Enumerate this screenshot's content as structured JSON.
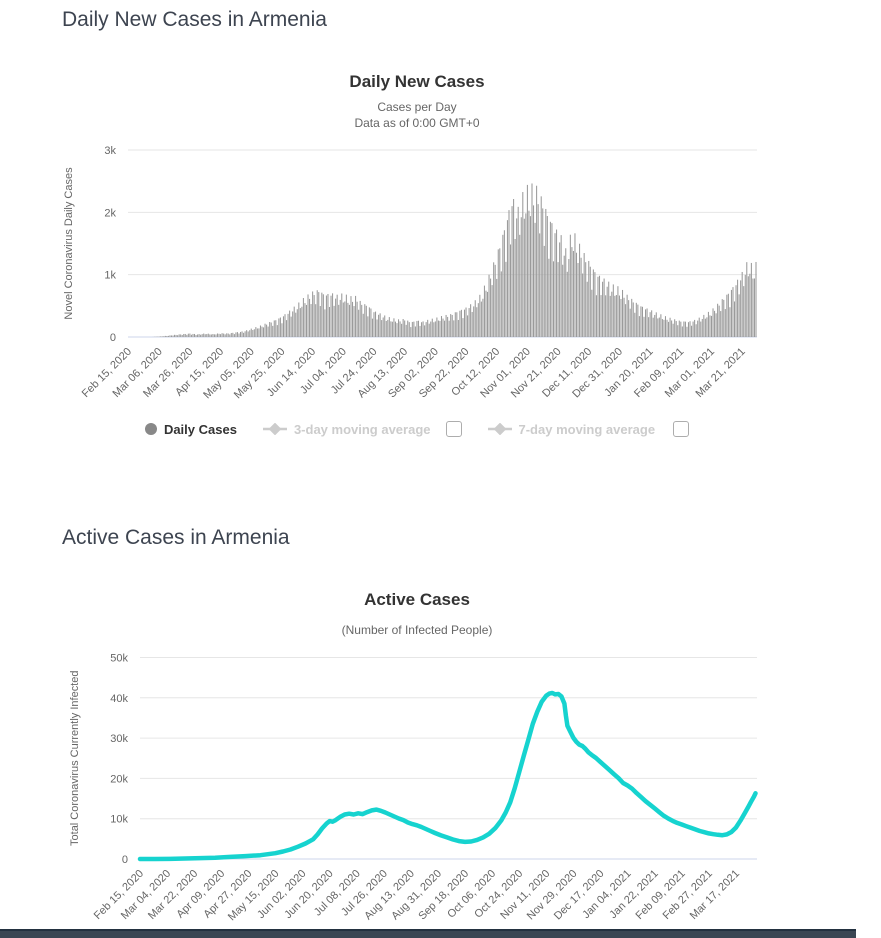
{
  "page": {
    "daily_section_heading": "Daily New Cases in Armenia",
    "active_section_heading": "Active Cases in Armenia",
    "footer_bar_color": "#3a4653"
  },
  "chart_data": [
    {
      "type": "bar",
      "title": "Daily New Cases",
      "subtitle_lines": [
        "Cases per Day",
        "Data as of 0:00 GMT+0"
      ],
      "ylabel": "Novel Coronavirus Daily Cases",
      "ylim": [
        0,
        3000
      ],
      "grid": true,
      "grid_color": "#e6e6e6",
      "axis_line_color": "#ccd6eb",
      "label_color": "#666666",
      "yticks": [
        {
          "value": 0,
          "label": "0"
        },
        {
          "value": 1000,
          "label": "1k"
        },
        {
          "value": 2000,
          "label": "2k"
        },
        {
          "value": 3000,
          "label": "3k"
        }
      ],
      "x_unit": "days since Feb 15, 2020",
      "xticks": [
        {
          "day": 0,
          "label": "Feb 15, 2020"
        },
        {
          "day": 20,
          "label": "Mar 06, 2020"
        },
        {
          "day": 40,
          "label": "Mar 26, 2020"
        },
        {
          "day": 60,
          "label": "Apr 15, 2020"
        },
        {
          "day": 80,
          "label": "May 05, 2020"
        },
        {
          "day": 100,
          "label": "May 25, 2020"
        },
        {
          "day": 120,
          "label": "Jun 14, 2020"
        },
        {
          "day": 140,
          "label": "Jul 04, 2020"
        },
        {
          "day": 160,
          "label": "Jul 24, 2020"
        },
        {
          "day": 180,
          "label": "Aug 13, 2020"
        },
        {
          "day": 200,
          "label": "Sep 02, 2020"
        },
        {
          "day": 220,
          "label": "Sep 22, 2020"
        },
        {
          "day": 240,
          "label": "Oct 12, 2020"
        },
        {
          "day": 260,
          "label": "Nov 01, 2020"
        },
        {
          "day": 280,
          "label": "Nov 21, 2020"
        },
        {
          "day": 300,
          "label": "Dec 11, 2020"
        },
        {
          "day": 320,
          "label": "Dec 31, 2020"
        },
        {
          "day": 340,
          "label": "Jan 20, 2021"
        },
        {
          "day": 360,
          "label": "Feb 09, 2021"
        },
        {
          "day": 380,
          "label": "Mar 01, 2021"
        },
        {
          "day": 400,
          "label": "Mar 21, 2021"
        }
      ],
      "series": [
        {
          "name": "Daily Cases",
          "color": "#9a9a9a",
          "envelope_points": [
            [
              0,
              0
            ],
            [
              14,
              0
            ],
            [
              16,
              2
            ],
            [
              20,
              8
            ],
            [
              25,
              20
            ],
            [
              30,
              35
            ],
            [
              35,
              48
            ],
            [
              40,
              58
            ],
            [
              45,
              45
            ],
            [
              50,
              58
            ],
            [
              55,
              48
            ],
            [
              60,
              62
            ],
            [
              65,
              60
            ],
            [
              70,
              78
            ],
            [
              75,
              95
            ],
            [
              80,
              135
            ],
            [
              85,
              175
            ],
            [
              90,
              225
            ],
            [
              95,
              275
            ],
            [
              100,
              340
            ],
            [
              105,
              430
            ],
            [
              110,
              530
            ],
            [
              115,
              650
            ],
            [
              120,
              740
            ],
            [
              124,
              780
            ],
            [
              128,
              705
            ],
            [
              132,
              725
            ],
            [
              136,
              685
            ],
            [
              140,
              705
            ],
            [
              144,
              655
            ],
            [
              148,
              665
            ],
            [
              152,
              565
            ],
            [
              156,
              525
            ],
            [
              160,
              430
            ],
            [
              164,
              385
            ],
            [
              168,
              335
            ],
            [
              172,
              305
            ],
            [
              176,
              285
            ],
            [
              180,
              295
            ],
            [
              184,
              245
            ],
            [
              188,
              275
            ],
            [
              192,
              255
            ],
            [
              196,
              285
            ],
            [
              200,
              305
            ],
            [
              205,
              345
            ],
            [
              210,
              375
            ],
            [
              215,
              435
            ],
            [
              220,
              485
            ],
            [
              225,
              565
            ],
            [
              230,
              705
            ],
            [
              235,
              1005
            ],
            [
              240,
              1355
            ],
            [
              245,
              1805
            ],
            [
              250,
              2305
            ],
            [
              254,
              2105
            ],
            [
              258,
              2405
            ],
            [
              262,
              2476
            ],
            [
              266,
              2450
            ],
            [
              270,
              2255
            ],
            [
              274,
              2005
            ],
            [
              278,
              1805
            ],
            [
              282,
              1655
            ],
            [
              286,
              1355
            ],
            [
              289,
              1785
            ],
            [
              292,
              1605
            ],
            [
              296,
              1405
            ],
            [
              300,
              1255
            ],
            [
              305,
              1055
            ],
            [
              310,
              955
            ],
            [
              315,
              855
            ],
            [
              320,
              805
            ],
            [
              325,
              685
            ],
            [
              330,
              585
            ],
            [
              335,
              505
            ],
            [
              340,
              445
            ],
            [
              345,
              385
            ],
            [
              350,
              335
            ],
            [
              355,
              295
            ],
            [
              360,
              265
            ],
            [
              365,
              255
            ],
            [
              370,
              285
            ],
            [
              375,
              355
            ],
            [
              380,
              435
            ],
            [
              385,
              565
            ],
            [
              390,
              705
            ],
            [
              395,
              865
            ],
            [
              400,
              1055
            ],
            [
              404,
              1255
            ],
            [
              407,
              1155
            ],
            [
              409,
              1205
            ]
          ]
        }
      ],
      "legend": {
        "items": [
          {
            "label": "Daily Cases",
            "enabled": true,
            "marker": "circle",
            "color": "#888888",
            "checkbox": false
          },
          {
            "label": "3-day moving average",
            "enabled": false,
            "marker": "line-diamond",
            "color": "#cccccc",
            "checkbox": true
          },
          {
            "label": "7-day moving average",
            "enabled": false,
            "marker": "line-diamond",
            "color": "#cccccc",
            "checkbox": true
          }
        ]
      }
    },
    {
      "type": "line",
      "title": "Active Cases",
      "subtitle_lines": [
        "(Number of Infected People)"
      ],
      "ylabel": "Total Coronavirus Currently Infected",
      "ylim": [
        0,
        50000
      ],
      "grid": true,
      "grid_color": "#e6e6e6",
      "axis_line_color": "#ccd6eb",
      "label_color": "#666666",
      "yticks": [
        {
          "value": 0,
          "label": "0"
        },
        {
          "value": 10000,
          "label": "10k"
        },
        {
          "value": 20000,
          "label": "20k"
        },
        {
          "value": 30000,
          "label": "30k"
        },
        {
          "value": 40000,
          "label": "40k"
        },
        {
          "value": 50000,
          "label": "50k"
        }
      ],
      "x_unit": "days since Feb 15, 2020",
      "xticks": [
        {
          "day": 0,
          "label": "Feb 15, 2020"
        },
        {
          "day": 18,
          "label": "Mar 04, 2020"
        },
        {
          "day": 36,
          "label": "Mar 22, 2020"
        },
        {
          "day": 54,
          "label": "Apr 09, 2020"
        },
        {
          "day": 72,
          "label": "Apr 27, 2020"
        },
        {
          "day": 90,
          "label": "May 15, 2020"
        },
        {
          "day": 108,
          "label": "Jun 02, 2020"
        },
        {
          "day": 126,
          "label": "Jun 20, 2020"
        },
        {
          "day": 144,
          "label": "Jul 08, 2020"
        },
        {
          "day": 162,
          "label": "Jul 26, 2020"
        },
        {
          "day": 180,
          "label": "Aug 13, 2020"
        },
        {
          "day": 198,
          "label": "Aug 31, 2020"
        },
        {
          "day": 216,
          "label": "Sep 18, 2020"
        },
        {
          "day": 234,
          "label": "Oct 06, 2020"
        },
        {
          "day": 252,
          "label": "Oct 24, 2020"
        },
        {
          "day": 270,
          "label": "Nov 11, 2020"
        },
        {
          "day": 288,
          "label": "Nov 29, 2020"
        },
        {
          "day": 306,
          "label": "Dec 17, 2020"
        },
        {
          "day": 324,
          "label": "Jan 04, 2021"
        },
        {
          "day": 342,
          "label": "Jan 22, 2021"
        },
        {
          "day": 360,
          "label": "Feb 09, 2021"
        },
        {
          "day": 378,
          "label": "Feb 27, 2021"
        },
        {
          "day": 396,
          "label": "Mar 17, 2021"
        }
      ],
      "series": [
        {
          "name": "Active Cases",
          "color": "#16d3cf",
          "points": [
            [
              0,
              0
            ],
            [
              10,
              0
            ],
            [
              20,
              30
            ],
            [
              30,
              120
            ],
            [
              40,
              220
            ],
            [
              50,
              330
            ],
            [
              60,
              520
            ],
            [
              70,
              720
            ],
            [
              80,
              950
            ],
            [
              90,
              1450
            ],
            [
              95,
              1850
            ],
            [
              100,
              2350
            ],
            [
              105,
              3050
            ],
            [
              110,
              3850
            ],
            [
              115,
              4900
            ],
            [
              118,
              6100
            ],
            [
              121,
              7600
            ],
            [
              124,
              8800
            ],
            [
              126,
              9400
            ],
            [
              128,
              9250
            ],
            [
              130,
              9650
            ],
            [
              133,
              10450
            ],
            [
              136,
              11050
            ],
            [
              139,
              11250
            ],
            [
              142,
              11050
            ],
            [
              145,
              11350
            ],
            [
              148,
              11150
            ],
            [
              151,
              11650
            ],
            [
              154,
              12050
            ],
            [
              157,
              12250
            ],
            [
              160,
              11950
            ],
            [
              163,
              11550
            ],
            [
              166,
              11050
            ],
            [
              169,
              10550
            ],
            [
              172,
              10050
            ],
            [
              175,
              9650
            ],
            [
              178,
              9050
            ],
            [
              181,
              8650
            ],
            [
              184,
              8350
            ],
            [
              187,
              7950
            ],
            [
              190,
              7450
            ],
            [
              193,
              6950
            ],
            [
              196,
              6450
            ],
            [
              200,
              5850
            ],
            [
              204,
              5350
            ],
            [
              208,
              4850
            ],
            [
              212,
              4450
            ],
            [
              216,
              4250
            ],
            [
              220,
              4350
            ],
            [
              224,
              4750
            ],
            [
              228,
              5350
            ],
            [
              232,
              6250
            ],
            [
              236,
              7650
            ],
            [
              240,
              9550
            ],
            [
              243,
              11550
            ],
            [
              246,
              14050
            ],
            [
              249,
              17550
            ],
            [
              252,
              21550
            ],
            [
              255,
              25550
            ],
            [
              258,
              29550
            ],
            [
              261,
              33550
            ],
            [
              264,
              36550
            ],
            [
              267,
              39050
            ],
            [
              270,
              40550
            ],
            [
              272,
              41050
            ],
            [
              274,
              41200
            ],
            [
              276,
              40850
            ],
            [
              278,
              40950
            ],
            [
              280,
              40350
            ],
            [
              282,
              38550
            ],
            [
              283,
              35550
            ],
            [
              284,
              33050
            ],
            [
              286,
              31550
            ],
            [
              288,
              30050
            ],
            [
              290,
              29050
            ],
            [
              292,
              28350
            ],
            [
              294,
              28050
            ],
            [
              296,
              27350
            ],
            [
              298,
              26450
            ],
            [
              300,
              25850
            ],
            [
              303,
              25050
            ],
            [
              306,
              24050
            ],
            [
              309,
              23050
            ],
            [
              312,
              22050
            ],
            [
              315,
              21050
            ],
            [
              318,
              20050
            ],
            [
              321,
              18850
            ],
            [
              324,
              18250
            ],
            [
              327,
              17450
            ],
            [
              330,
              16350
            ],
            [
              333,
              15350
            ],
            [
              336,
              14350
            ],
            [
              339,
              13450
            ],
            [
              342,
              12550
            ],
            [
              345,
              11650
            ],
            [
              348,
              10750
            ],
            [
              351,
              10050
            ],
            [
              354,
              9450
            ],
            [
              357,
              8950
            ],
            [
              360,
              8550
            ],
            [
              363,
              8150
            ],
            [
              366,
              7750
            ],
            [
              369,
              7350
            ],
            [
              372,
              6950
            ],
            [
              375,
              6650
            ],
            [
              378,
              6350
            ],
            [
              381,
              6150
            ],
            [
              384,
              6000
            ],
            [
              387,
              5900
            ],
            [
              390,
              6100
            ],
            [
              393,
              6700
            ],
            [
              396,
              7800
            ],
            [
              399,
              9500
            ],
            [
              402,
              11500
            ],
            [
              404,
              12800
            ],
            [
              406,
              14200
            ],
            [
              408,
              15500
            ],
            [
              409,
              16300
            ]
          ]
        }
      ]
    }
  ]
}
